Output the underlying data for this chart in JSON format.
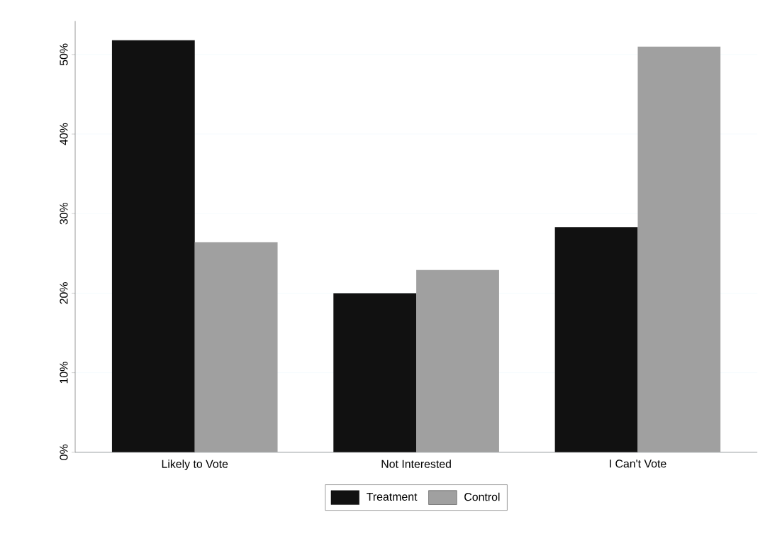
{
  "chart_data": {
    "type": "bar",
    "categories": [
      "Likely to Vote",
      "Not Interested",
      "I Can't Vote"
    ],
    "series": [
      {
        "name": "Treatment",
        "color": "#111111",
        "values": [
          51.8,
          20.0,
          28.3
        ]
      },
      {
        "name": "Control",
        "color": "#a0a0a0",
        "values": [
          26.4,
          22.9,
          51.0
        ]
      }
    ],
    "ylim": [
      0,
      54.2
    ],
    "yticks": [
      {
        "value": 0,
        "label": "0%"
      },
      {
        "value": 10,
        "label": "10%"
      },
      {
        "value": 20,
        "label": "20%"
      },
      {
        "value": 30,
        "label": "30%"
      },
      {
        "value": 40,
        "label": "40%"
      },
      {
        "value": 50,
        "label": "50%"
      }
    ],
    "grid": "y",
    "legend": "bottom"
  }
}
